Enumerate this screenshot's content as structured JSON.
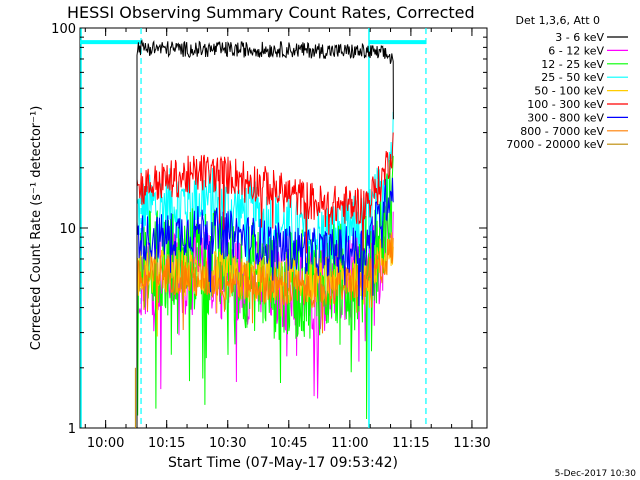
{
  "chart_data": {
    "type": "line",
    "title": "HESSI Observing Summary Count Rates, Corrected",
    "xlabel": "Start Time (07-May-17 09:53:42)",
    "ylabel": "Corrected Count Rate (s⁻¹ detector⁻¹)",
    "footer": "5-Dec-2017 10:30",
    "x_unit": "minutes since 09:53:42",
    "xlim": [
      0,
      100
    ],
    "ylim": [
      1,
      100
    ],
    "y_scale": "log",
    "x_ticks": [
      {
        "label": "10:00",
        "x": 6.3
      },
      {
        "label": "10:15",
        "x": 21.3
      },
      {
        "label": "10:30",
        "x": 36.3
      },
      {
        "label": "10:45",
        "x": 51.3
      },
      {
        "label": "11:00",
        "x": 66.3
      },
      {
        "label": "11:15",
        "x": 81.3
      },
      {
        "label": "11:30",
        "x": 96.3
      }
    ],
    "y_ticks": [
      {
        "label": "1",
        "y": 1
      },
      {
        "label": "10",
        "y": 10
      },
      {
        "label": "100",
        "y": 100
      }
    ],
    "legend": {
      "title": "Det 1,3,6, Att 0",
      "placement": "right"
    },
    "series": [
      {
        "name": "3 - 6 keV",
        "color": "#000000",
        "x": [
          14,
          14.5,
          20,
          30,
          40,
          50,
          60,
          70,
          75,
          77
        ],
        "y": [
          80,
          80,
          79,
          78,
          78,
          78,
          77,
          76,
          74,
          70
        ]
      },
      {
        "name": "6 - 12 keV",
        "color": "#ff00ff",
        "x": [
          14,
          20,
          30,
          40,
          50,
          60,
          70,
          74,
          77
        ],
        "y": [
          6,
          6,
          6,
          5.5,
          5,
          5,
          5.5,
          7,
          9
        ]
      },
      {
        "name": "12 - 25 keV",
        "color": "#00ff00",
        "x": [
          14,
          20,
          30,
          40,
          50,
          60,
          70,
          74,
          77
        ],
        "y": [
          7,
          6.5,
          7,
          6,
          5,
          5.5,
          6,
          9,
          14
        ]
      },
      {
        "name": "25 - 50 keV",
        "color": "#00ffff",
        "x": [
          14,
          20,
          30,
          40,
          50,
          60,
          70,
          74,
          77
        ],
        "y": [
          12,
          13,
          14,
          12,
          10,
          9,
          10,
          15,
          28
        ]
      },
      {
        "name": "50 - 100 keV",
        "color": "#ffcc00",
        "x": [
          14,
          20,
          30,
          40,
          50,
          60,
          70,
          74,
          77
        ],
        "y": [
          6,
          6,
          6,
          5.5,
          5.5,
          5.5,
          6,
          7,
          8
        ]
      },
      {
        "name": "100 - 300 keV",
        "color": "#ff0000",
        "x": [
          14,
          20,
          30,
          40,
          50,
          60,
          70,
          74,
          77
        ],
        "y": [
          16,
          17,
          19,
          18,
          15,
          13,
          13,
          17,
          26
        ]
      },
      {
        "name": "300 - 800 keV",
        "color": "#0000ff",
        "x": [
          14,
          20,
          30,
          40,
          50,
          60,
          70,
          74,
          77
        ],
        "y": [
          9,
          9,
          10,
          9,
          8,
          7.5,
          8,
          12,
          17
        ]
      },
      {
        "name": "800 - 7000 keV",
        "color": "#ff7f00",
        "x": [
          14,
          20,
          30,
          40,
          50,
          60,
          70,
          74,
          77
        ],
        "y": [
          5.5,
          6,
          5.5,
          5.5,
          5,
          5,
          5.5,
          6.5,
          8
        ]
      },
      {
        "name": "7000 - 20000 keV",
        "color": "#bb8800",
        "x": [
          13.6,
          13.6
        ],
        "y": [
          1,
          2
        ]
      }
    ],
    "annotations": {
      "cyan_flag_bar": [
        {
          "x0": 0,
          "x1": 15,
          "y": 85
        },
        {
          "x0": 71,
          "x1": 85,
          "y": 85
        }
      ],
      "cyan_solid_vlines": [
        0,
        71
      ],
      "cyan_dashed_vlines": [
        15,
        85
      ]
    }
  }
}
